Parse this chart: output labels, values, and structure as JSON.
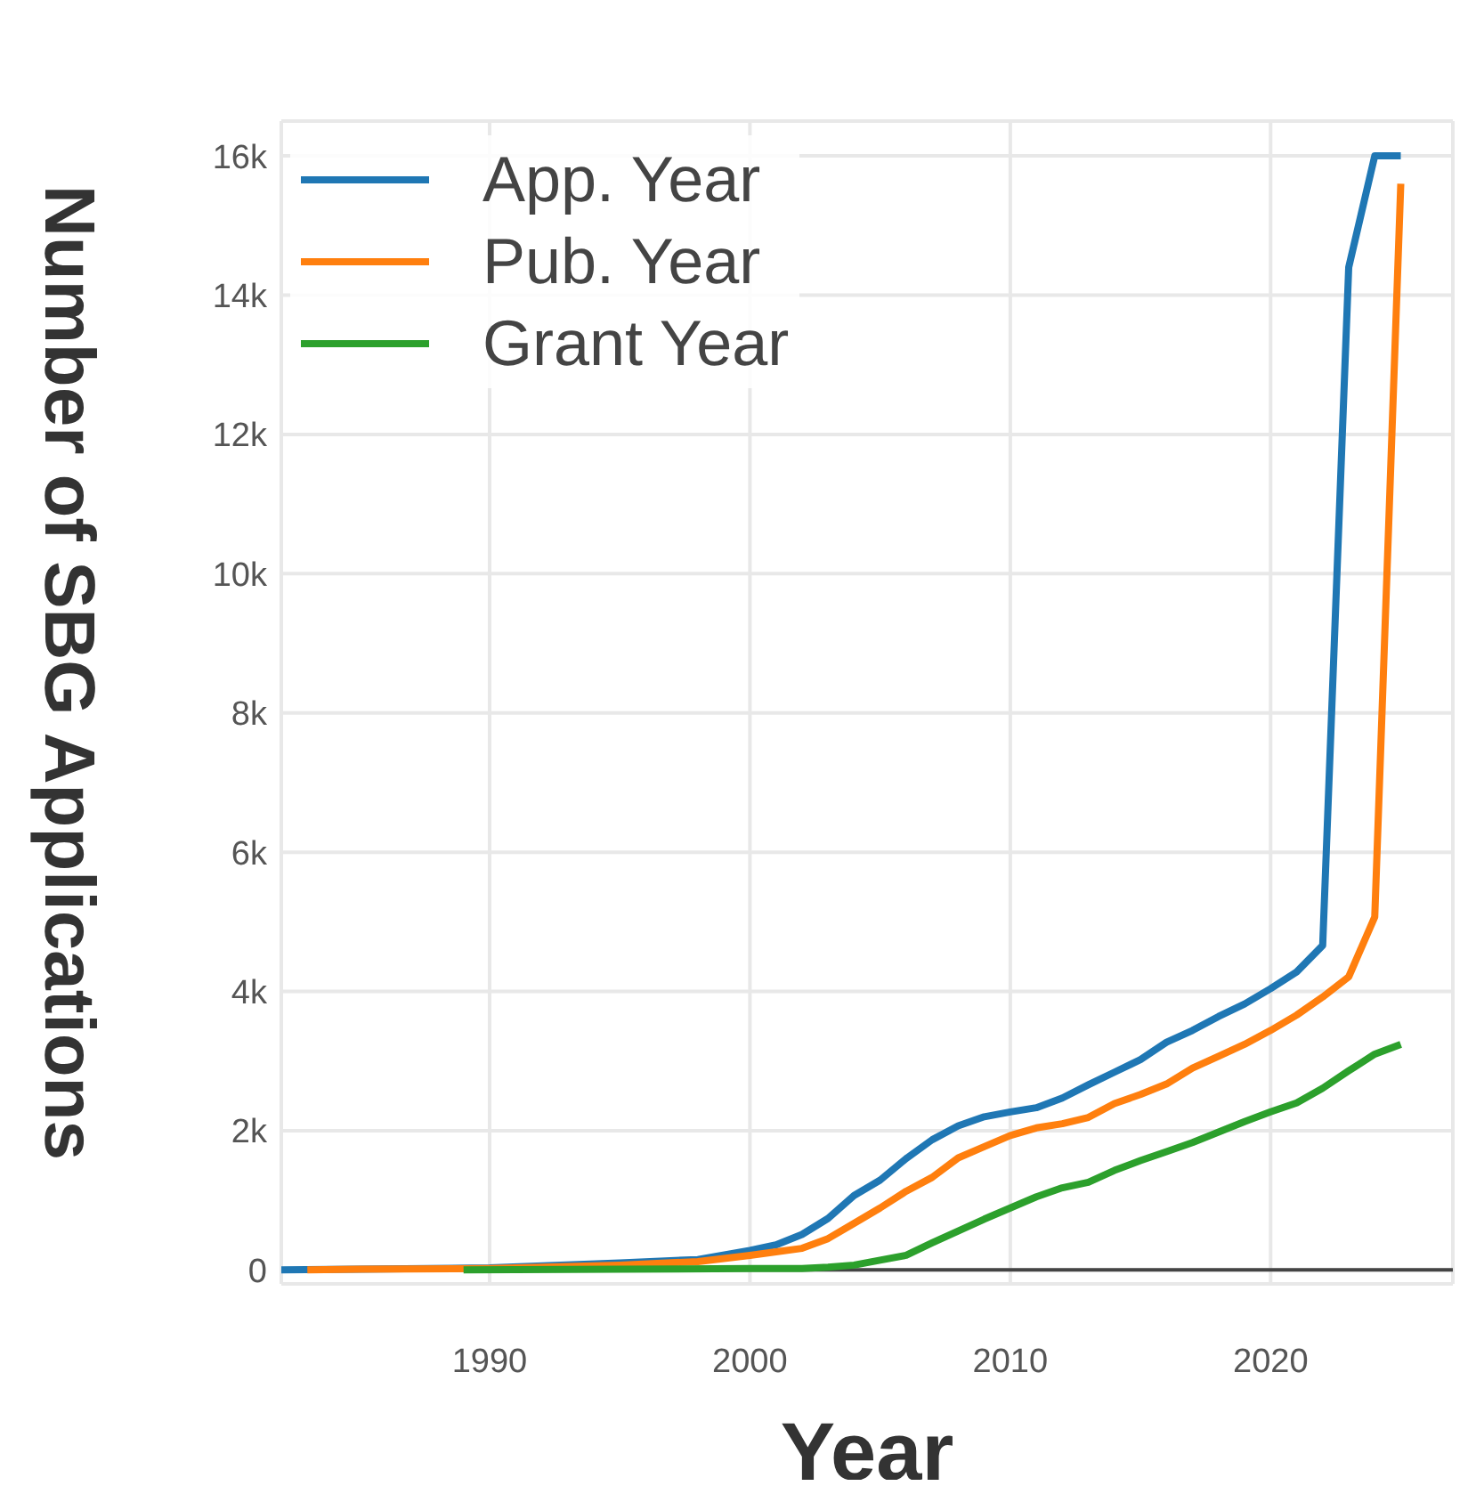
{
  "chart_data": {
    "type": "line",
    "xlabel": "Year",
    "ylabel": "Number of SBG Applications",
    "xlim": [
      1982,
      2027
    ],
    "xticks": [
      1990,
      2000,
      2010,
      2020
    ],
    "ylim": [
      -200,
      16500
    ],
    "yticks": [
      0,
      {
        "value": 2000,
        "label": "2k"
      },
      {
        "value": 4000,
        "label": "4k"
      },
      {
        "value": 6000,
        "label": "6k"
      },
      {
        "value": 8000,
        "label": "8k"
      },
      {
        "value": 10000,
        "label": "10k"
      },
      {
        "value": 12000,
        "label": "12k"
      },
      {
        "value": 14000,
        "label": "14k"
      },
      {
        "value": 16000,
        "label": "16k"
      }
    ],
    "grid": true,
    "legend": "top left",
    "marker": "none",
    "line_style": "solid",
    "series": [
      {
        "name": "App. Year",
        "color": "#1f77b4",
        "x": [
          1982,
          1990,
          1995,
          1998,
          2000,
          2001,
          2002,
          2003,
          2004,
          2005,
          2006,
          2007,
          2008,
          2009,
          2010,
          2011,
          2012,
          2013,
          2014,
          2015,
          2016,
          2017,
          2018,
          2019,
          2020,
          2021,
          2022,
          2023,
          2024,
          2025
        ],
        "values": [
          0,
          30,
          100,
          150,
          280,
          360,
          510,
          740,
          1070,
          1290,
          1600,
          1870,
          2070,
          2200,
          2270,
          2330,
          2470,
          2660,
          2840,
          3020,
          3270,
          3440,
          3640,
          3820,
          4040,
          4280,
          4660,
          14400,
          16000,
          16000
        ]
      },
      {
        "name": "Pub. Year",
        "color": "#ff7f0e",
        "x": [
          1983,
          1985,
          1990,
          1995,
          1998,
          2000,
          2001,
          2002,
          2003,
          2004,
          2005,
          2006,
          2007,
          2008,
          2009,
          2010,
          2011,
          2012,
          2013,
          2014,
          2015,
          2016,
          2017,
          2018,
          2019,
          2020,
          2021,
          2022,
          2023,
          2024,
          2025
        ],
        "values": [
          0,
          10,
          20,
          70,
          120,
          210,
          260,
          310,
          450,
          670,
          890,
          1130,
          1330,
          1610,
          1770,
          1930,
          2040,
          2100,
          2190,
          2390,
          2520,
          2670,
          2900,
          3070,
          3240,
          3440,
          3660,
          3920,
          4210,
          5070,
          15600
        ]
      },
      {
        "name": "Grant Year",
        "color": "#2ca02c",
        "x": [
          1989,
          1995,
          2000,
          2002,
          2003,
          2004,
          2005,
          2006,
          2007,
          2008,
          2009,
          2010,
          2011,
          2012,
          2013,
          2014,
          2015,
          2016,
          2017,
          2018,
          2019,
          2020,
          2021,
          2022,
          2023,
          2024,
          2025
        ],
        "values": [
          0,
          10,
          20,
          20,
          40,
          70,
          140,
          210,
          390,
          560,
          730,
          890,
          1050,
          1180,
          1260,
          1430,
          1570,
          1700,
          1830,
          1980,
          2130,
          2270,
          2400,
          2610,
          2860,
          3100,
          3240
        ]
      }
    ]
  }
}
